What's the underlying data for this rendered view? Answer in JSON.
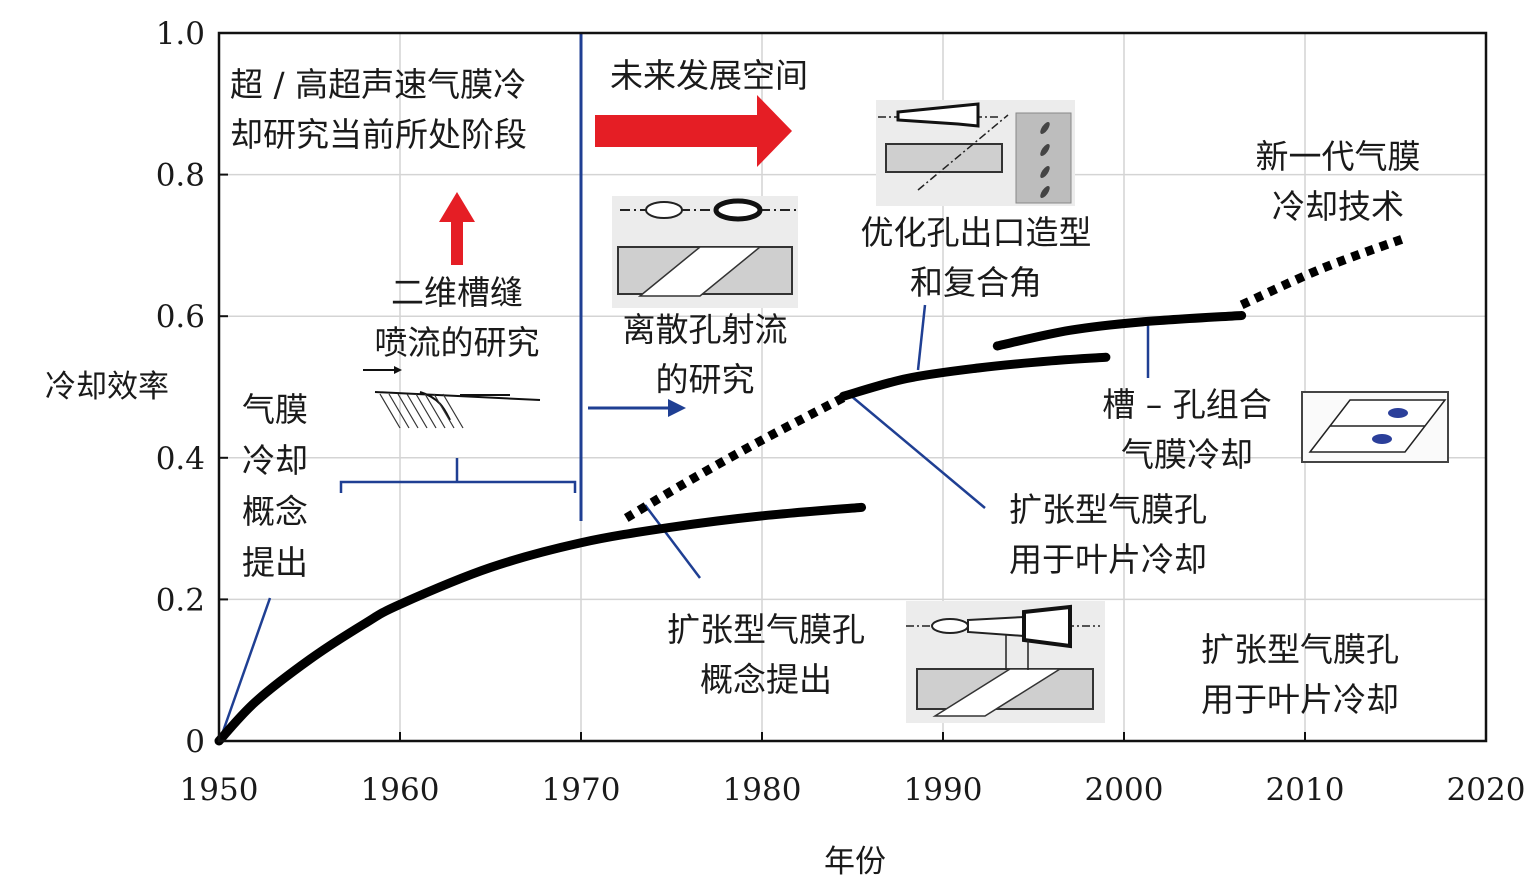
{
  "chart_data": {
    "type": "line",
    "title": "",
    "xlabel": "年份",
    "ylabel": "冷却效率",
    "xlim": [
      1950,
      2020
    ],
    "ylim": [
      0,
      1.0
    ],
    "x_ticks": [
      "1950",
      "1960",
      "1970",
      "1980",
      "1990",
      "2000",
      "2010",
      "2020"
    ],
    "y_ticks": [
      "0",
      "0.2",
      "0.4",
      "0.6",
      "0.8",
      "1.0"
    ],
    "grid": true,
    "series": [
      {
        "style": "solid",
        "x": [
          1950,
          1952,
          1955,
          1958,
          1960,
          1965,
          1970,
          1975,
          1980,
          1985.5
        ],
        "y": [
          0,
          0.055,
          0.115,
          0.165,
          0.193,
          0.245,
          0.28,
          0.302,
          0.318,
          0.33
        ]
      },
      {
        "style": "dotted",
        "x": [
          1972.5,
          1976,
          1980,
          1984.5
        ],
        "y": [
          0.315,
          0.368,
          0.425,
          0.485
        ]
      },
      {
        "style": "solid",
        "x": [
          1984.5,
          1988,
          1992,
          1996,
          1999
        ],
        "y": [
          0.487,
          0.512,
          0.527,
          0.537,
          0.542
        ]
      },
      {
        "style": "solid",
        "x": [
          1993,
          1997,
          2001,
          2006.5
        ],
        "y": [
          0.558,
          0.58,
          0.592,
          0.601
        ]
      },
      {
        "style": "dotted",
        "x": [
          2006.5,
          2011,
          2015.5
        ],
        "y": [
          0.616,
          0.668,
          0.71
        ]
      }
    ],
    "annotations": [
      {
        "id": "current-stage",
        "lines": [
          "超 / 高超声速气膜冷",
          "却研究当前所处阶段"
        ]
      },
      {
        "id": "future-space",
        "lines": [
          "未来发展空间"
        ]
      },
      {
        "id": "slot-jet",
        "lines": [
          "二维槽缝",
          "喷流的研究"
        ]
      },
      {
        "id": "concept",
        "lines": [
          "气膜",
          "冷却",
          "概念",
          "提出"
        ]
      },
      {
        "id": "discrete-hole",
        "lines": [
          "离散孔射流",
          "的研究"
        ]
      },
      {
        "id": "optimized-exit",
        "lines": [
          "优化孔出口造型",
          "和复合角"
        ]
      },
      {
        "id": "next-gen",
        "lines": [
          "新一代气膜",
          "冷却技术"
        ]
      },
      {
        "id": "slot-hole",
        "lines": [
          "槽 – 孔组合",
          "气膜冷却"
        ]
      },
      {
        "id": "expand-blade-1",
        "lines": [
          "扩张型气膜孔",
          "用于叶片冷却"
        ]
      },
      {
        "id": "expand-concept",
        "lines": [
          "扩张型气膜孔",
          "概念提出"
        ]
      },
      {
        "id": "expand-blade-2",
        "lines": [
          "扩张型气膜孔",
          "用于叶片冷却"
        ]
      }
    ],
    "colors": {
      "curve": "#000000",
      "arrow_red": "#e51e25",
      "leader_blue": "#1f3f93",
      "grid": "#d4d4d4"
    }
  }
}
